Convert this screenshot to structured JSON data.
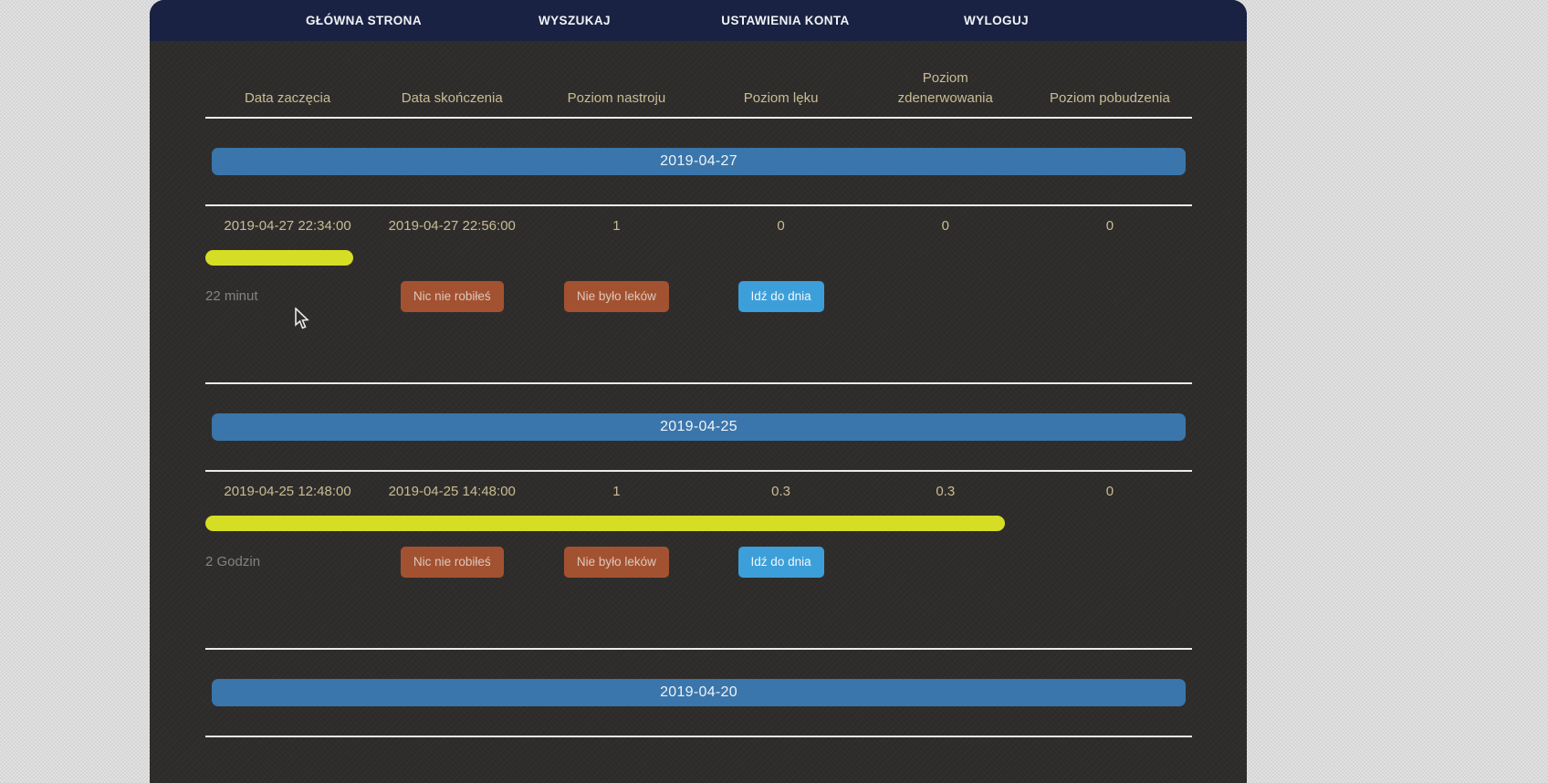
{
  "nav": {
    "items": [
      "GŁÓWNA STRONA",
      "WYSZUKAJ",
      "USTAWIENIA KONTA",
      "WYLOGUJ"
    ]
  },
  "table": {
    "headers": [
      "Data zaczęcia",
      "Data skończenia",
      "Poziom nastroju",
      "Poziom lęku",
      "Poziom\nzdenerwowania",
      "Poziom pobudzenia"
    ]
  },
  "day_groups": [
    {
      "date": "2019-04-27",
      "entries": [
        {
          "start": "2019-04-27 22:34:00",
          "end": "2019-04-27 22:56:00",
          "mood": "1",
          "anxiety": "0",
          "nervousness": "0",
          "agitation": "0",
          "duration": "22 minut",
          "duration_bar_percent": 15,
          "actions": {
            "nothing": "Nic nie robiłeś",
            "no_meds": "Nie było leków",
            "go_to_day": "Idź do dnia"
          }
        }
      ]
    },
    {
      "date": "2019-04-25",
      "entries": [
        {
          "start": "2019-04-25 12:48:00",
          "end": "2019-04-25 14:48:00",
          "mood": "1",
          "anxiety": "0.3",
          "nervousness": "0.3",
          "agitation": "0",
          "duration": "2 Godzin",
          "duration_bar_percent": 81,
          "actions": {
            "nothing": "Nic nie robiłeś",
            "no_meds": "Nie było leków",
            "go_to_day": "Idź do dnia"
          }
        }
      ]
    },
    {
      "date": "2019-04-20",
      "entries": []
    }
  ],
  "colors": {
    "nav_background": "#192242",
    "panel_background": "#2f2d2b",
    "date_bar_blue": "#3a76ab",
    "duration_bar_yellow": "#d5de24",
    "action_button_brown": "#a35231",
    "action_button_blue": "#3c9fd9",
    "table_text": "#c9bc95"
  }
}
